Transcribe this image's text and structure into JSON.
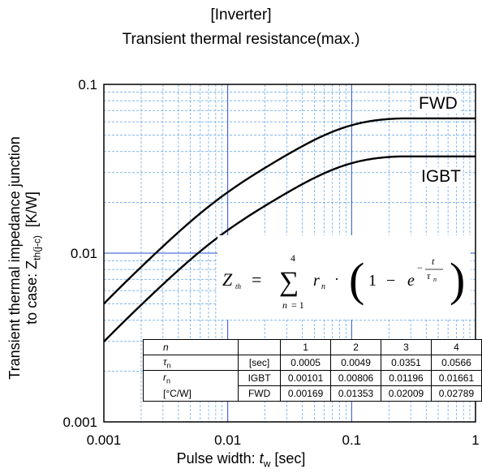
{
  "title_line1": "[Inverter]",
  "title_line2": "Transient thermal resistance(max.)",
  "ylabel_line1": "Transient thermal impedance junction",
  "ylabel_line2_prefix": "to case: Z",
  "ylabel_line2_sub": "th(j-c)",
  "ylabel_line2_unit": "[K/W]",
  "xlabel_prefix": "Pulse width: ",
  "xlabel_var": "t",
  "xlabel_sub": "w",
  "xlabel_unit": " [sec]",
  "chart_data": {
    "type": "line",
    "xscale": "log",
    "yscale": "log",
    "xlim": [
      0.001,
      1
    ],
    "ylim": [
      0.001,
      0.1
    ],
    "x_ticks": [
      "0.001",
      "0.01",
      "0.1",
      "1"
    ],
    "y_ticks": [
      "0.001",
      "0.01",
      "0.1"
    ],
    "grid": true,
    "series": [
      {
        "name": "FWD",
        "tau": [
          0.0005,
          0.0049,
          0.0351,
          0.0566
        ],
        "r": [
          0.00169,
          0.01353,
          0.02009,
          0.02789
        ]
      },
      {
        "name": "IGBT",
        "tau": [
          0.0005,
          0.0049,
          0.0351,
          0.0566
        ],
        "r": [
          0.00101,
          0.00806,
          0.01196,
          0.01661
        ]
      }
    ]
  },
  "table": {
    "header": [
      "n",
      "",
      "1",
      "2",
      "3",
      "4"
    ],
    "tau_label": "τ",
    "tau_sub": "n",
    "tau_unit": "[sec]",
    "tau_values": [
      "0.0005",
      "0.0049",
      "0.0351",
      "0.0566"
    ],
    "r_label": "r",
    "r_sub": "n",
    "r_unit": "[°C/W]",
    "igbt_label": "IGBT",
    "igbt_values": [
      "0.00101",
      "0.00806",
      "0.01196",
      "0.01661"
    ],
    "fwd_label": "FWD",
    "fwd_values": [
      "0.00169",
      "0.01353",
      "0.02009",
      "0.02789"
    ]
  }
}
